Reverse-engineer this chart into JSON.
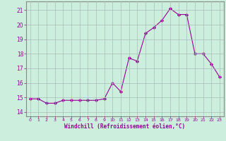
{
  "x": [
    0,
    1,
    2,
    3,
    4,
    5,
    6,
    7,
    8,
    9,
    10,
    11,
    12,
    13,
    14,
    15,
    16,
    17,
    18,
    19,
    20,
    21,
    22,
    23
  ],
  "y": [
    14.9,
    14.9,
    14.6,
    14.6,
    14.8,
    14.8,
    14.8,
    14.8,
    14.8,
    14.9,
    16.0,
    15.4,
    17.7,
    17.5,
    19.4,
    19.8,
    20.3,
    21.1,
    20.7,
    20.7,
    18.0,
    18.0,
    17.3,
    16.4
  ],
  "line_color": "#990099",
  "marker": "D",
  "marker_size": 2.2,
  "bg_color": "#cceedd",
  "grid_color": "#aabbbb",
  "xlabel": "Windchill (Refroidissement éolien,°C)",
  "xlim": [
    -0.5,
    23.5
  ],
  "ylim": [
    13.7,
    21.6
  ],
  "yticks": [
    14,
    15,
    16,
    17,
    18,
    19,
    20,
    21
  ],
  "xticks": [
    0,
    1,
    2,
    3,
    4,
    5,
    6,
    7,
    8,
    9,
    10,
    11,
    12,
    13,
    14,
    15,
    16,
    17,
    18,
    19,
    20,
    21,
    22,
    23
  ],
  "tick_color": "#990099",
  "label_color": "#990099",
  "grid_linewidth": 0.5,
  "line_width": 0.8
}
